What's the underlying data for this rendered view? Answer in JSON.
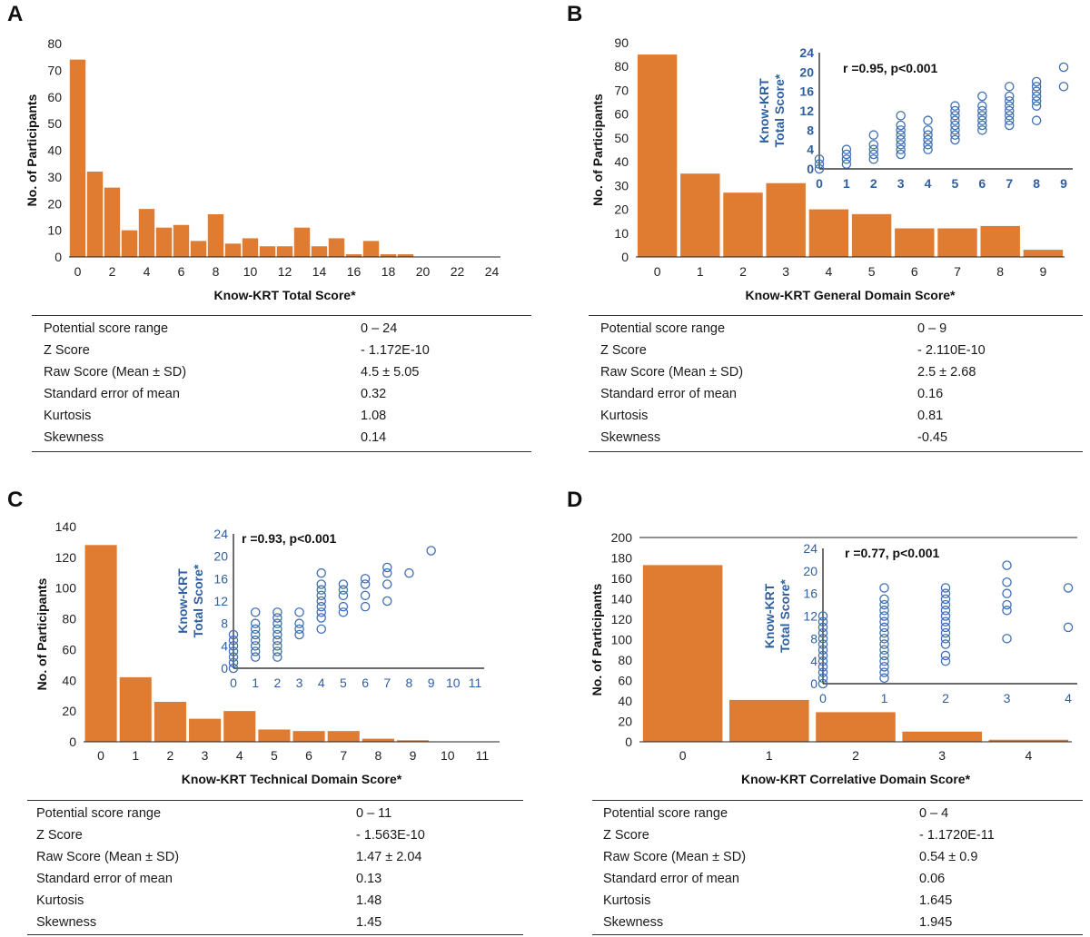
{
  "panels": {
    "A": {
      "letter": "A",
      "chart_data": {
        "type": "bar",
        "x_start": 0,
        "bin_width": 1,
        "values": [
          74,
          32,
          26,
          10,
          18,
          11,
          12,
          6,
          16,
          5,
          7,
          4,
          4,
          11,
          4,
          7,
          1,
          6,
          1,
          1,
          0,
          0,
          0,
          0,
          0
        ],
        "xlim": [
          -0.5,
          24.5
        ],
        "ylim": [
          0,
          80
        ],
        "xticks": [
          "0",
          "2",
          "4",
          "6",
          "8",
          "10",
          "12",
          "14",
          "16",
          "18",
          "20",
          "22",
          "24"
        ],
        "xtick_values": [
          0,
          2,
          4,
          6,
          8,
          10,
          12,
          14,
          16,
          18,
          20,
          22,
          24
        ],
        "yticks": [
          "0",
          "10",
          "20",
          "30",
          "40",
          "50",
          "60",
          "70",
          "80"
        ],
        "ytick_values": [
          0,
          10,
          20,
          30,
          40,
          50,
          60,
          70,
          80
        ],
        "xlabel": "Know-KRT Total Score*",
        "ylabel": "No. of Participants",
        "color": "#E07B32",
        "inset": null
      },
      "stats": [
        {
          "label": "Potential score range",
          "value": "0 – 24"
        },
        {
          "label": "Z Score",
          "value": "- 1.172E-10"
        },
        {
          "label": "Raw Score (Mean ± SD)",
          "value": "4.5 ± 5.05"
        },
        {
          "label": "Standard error of mean",
          "value": "0.32"
        },
        {
          "label": "Kurtosis",
          "value": "1.08"
        },
        {
          "label": "Skewness",
          "value": "0.14"
        }
      ]
    },
    "B": {
      "letter": "B",
      "chart_data": {
        "type": "bar",
        "categories": [
          "0",
          "1",
          "2",
          "3",
          "4",
          "5",
          "6",
          "7",
          "8",
          "9"
        ],
        "values": [
          85,
          35,
          27,
          31,
          20,
          18,
          12,
          12,
          13,
          3
        ],
        "ylim": [
          0,
          90
        ],
        "yticks": [
          "0",
          "10",
          "20",
          "30",
          "40",
          "50",
          "60",
          "70",
          "80",
          "90"
        ],
        "ytick_values": [
          0,
          10,
          20,
          30,
          40,
          50,
          60,
          70,
          80,
          90
        ],
        "xlabel": "Know-KRT General Domain Score*",
        "ylabel": "No. of Participants",
        "color": "#E07B32",
        "inset": {
          "type": "scatter",
          "annotation": "r =0.95, p<0.001",
          "ylabel_line1": "Know-KRT",
          "ylabel_line2": "Total Score*",
          "xlim": [
            0,
            9
          ],
          "ylim": [
            0,
            24
          ],
          "xticks": [
            "0",
            "1",
            "2",
            "3",
            "4",
            "5",
            "6",
            "7",
            "8",
            "9"
          ],
          "xtick_values": [
            0,
            1,
            2,
            3,
            4,
            5,
            6,
            7,
            8,
            9
          ],
          "yticks": [
            "0",
            "4",
            "8",
            "12",
            "16",
            "20",
            "24"
          ],
          "ytick_values": [
            0,
            4,
            8,
            12,
            16,
            20,
            24
          ],
          "bold_ticks": true,
          "points": [
            [
              0,
              0
            ],
            [
              0,
              1
            ],
            [
              0,
              2
            ],
            [
              1,
              1
            ],
            [
              1,
              2
            ],
            [
              1,
              3
            ],
            [
              1,
              4
            ],
            [
              2,
              2
            ],
            [
              2,
              3
            ],
            [
              2,
              4
            ],
            [
              2,
              5
            ],
            [
              2,
              7
            ],
            [
              3,
              3
            ],
            [
              3,
              4
            ],
            [
              3,
              5
            ],
            [
              3,
              6
            ],
            [
              3,
              7
            ],
            [
              3,
              8
            ],
            [
              3,
              9
            ],
            [
              3,
              11
            ],
            [
              4,
              4
            ],
            [
              4,
              5
            ],
            [
              4,
              6
            ],
            [
              4,
              7
            ],
            [
              4,
              8
            ],
            [
              4,
              10
            ],
            [
              5,
              6
            ],
            [
              5,
              7
            ],
            [
              5,
              8
            ],
            [
              5,
              9
            ],
            [
              5,
              10
            ],
            [
              5,
              11
            ],
            [
              5,
              12
            ],
            [
              5,
              13
            ],
            [
              6,
              8
            ],
            [
              6,
              9
            ],
            [
              6,
              10
            ],
            [
              6,
              11
            ],
            [
              6,
              12
            ],
            [
              6,
              13
            ],
            [
              6,
              15
            ],
            [
              7,
              9
            ],
            [
              7,
              10
            ],
            [
              7,
              11
            ],
            [
              7,
              12
            ],
            [
              7,
              13
            ],
            [
              7,
              14
            ],
            [
              7,
              15
            ],
            [
              7,
              17
            ],
            [
              8,
              10
            ],
            [
              8,
              13
            ],
            [
              8,
              14
            ],
            [
              8,
              15
            ],
            [
              8,
              16
            ],
            [
              8,
              17
            ],
            [
              8,
              18
            ],
            [
              9,
              17
            ],
            [
              9,
              21
            ]
          ]
        }
      },
      "stats": [
        {
          "label": "Potential score range",
          "value": "0 – 9"
        },
        {
          "label": "Z Score",
          "value": "- 2.110E-10"
        },
        {
          "label": "Raw Score (Mean ± SD)",
          "value": "2.5 ± 2.68"
        },
        {
          "label": "Standard error of mean",
          "value": "0.16"
        },
        {
          "label": "Kurtosis",
          "value": "0.81"
        },
        {
          "label": "Skewness",
          "value": "-0.45"
        }
      ]
    },
    "C": {
      "letter": "C",
      "chart_data": {
        "type": "bar",
        "categories": [
          "0",
          "1",
          "2",
          "3",
          "4",
          "5",
          "6",
          "7",
          "8",
          "9",
          "10",
          "11"
        ],
        "values": [
          128,
          42,
          26,
          15,
          20,
          8,
          7,
          7,
          2,
          1,
          0,
          0
        ],
        "ylim": [
          0,
          140
        ],
        "yticks": [
          "0",
          "20",
          "40",
          "60",
          "80",
          "100",
          "120",
          "140"
        ],
        "ytick_values": [
          0,
          20,
          40,
          60,
          80,
          100,
          120,
          140
        ],
        "xlabel": "Know-KRT Technical Domain Score*",
        "ylabel": "No. of Participants",
        "color": "#E07B32",
        "inset": {
          "type": "scatter",
          "annotation": "r =0.93, p<0.001",
          "ylabel_line1": "Know-KRT",
          "ylabel_line2": "Total Score*",
          "xlim": [
            0,
            11
          ],
          "ylim": [
            0,
            24
          ],
          "xticks": [
            "0",
            "1",
            "2",
            "3",
            "4",
            "5",
            "6",
            "7",
            "8",
            "9",
            "10",
            "11"
          ],
          "xtick_values": [
            0,
            1,
            2,
            3,
            4,
            5,
            6,
            7,
            8,
            9,
            10,
            11
          ],
          "yticks": [
            "0",
            "4",
            "8",
            "12",
            "16",
            "20",
            "24"
          ],
          "ytick_values": [
            0,
            4,
            8,
            12,
            16,
            20,
            24
          ],
          "bold_ticks": false,
          "points": [
            [
              0,
              0
            ],
            [
              0,
              1
            ],
            [
              0,
              2
            ],
            [
              0,
              3
            ],
            [
              0,
              4
            ],
            [
              0,
              5
            ],
            [
              0,
              6
            ],
            [
              1,
              2
            ],
            [
              1,
              3
            ],
            [
              1,
              4
            ],
            [
              1,
              5
            ],
            [
              1,
              6
            ],
            [
              1,
              7
            ],
            [
              1,
              8
            ],
            [
              1,
              10
            ],
            [
              2,
              2
            ],
            [
              2,
              3
            ],
            [
              2,
              4
            ],
            [
              2,
              5
            ],
            [
              2,
              6
            ],
            [
              2,
              7
            ],
            [
              2,
              8
            ],
            [
              2,
              9
            ],
            [
              2,
              10
            ],
            [
              3,
              6
            ],
            [
              3,
              7
            ],
            [
              3,
              8
            ],
            [
              3,
              10
            ],
            [
              4,
              7
            ],
            [
              4,
              9
            ],
            [
              4,
              10
            ],
            [
              4,
              11
            ],
            [
              4,
              12
            ],
            [
              4,
              13
            ],
            [
              4,
              14
            ],
            [
              4,
              15
            ],
            [
              4,
              17
            ],
            [
              5,
              10
            ],
            [
              5,
              11
            ],
            [
              5,
              13
            ],
            [
              5,
              14
            ],
            [
              5,
              15
            ],
            [
              6,
              11
            ],
            [
              6,
              13
            ],
            [
              6,
              15
            ],
            [
              6,
              16
            ],
            [
              7,
              12
            ],
            [
              7,
              15
            ],
            [
              7,
              17
            ],
            [
              7,
              18
            ],
            [
              8,
              17
            ],
            [
              9,
              21
            ]
          ]
        }
      },
      "stats": [
        {
          "label": "Potential score range",
          "value": "0 – 11"
        },
        {
          "label": "Z Score",
          "value": "- 1.563E-10"
        },
        {
          "label": "Raw Score (Mean ± SD)",
          "value": "1.47 ± 2.04"
        },
        {
          "label": "Standard error of mean",
          "value": "0.13"
        },
        {
          "label": "Kurtosis",
          "value": "1.48"
        },
        {
          "label": "Skewness",
          "value": "1.45"
        }
      ]
    },
    "D": {
      "letter": "D",
      "chart_data": {
        "type": "bar",
        "categories": [
          "0",
          "1",
          "2",
          "3",
          "4"
        ],
        "values": [
          173,
          41,
          29,
          10,
          2
        ],
        "ylim": [
          0,
          200
        ],
        "yticks": [
          "0",
          "20",
          "40",
          "60",
          "80",
          "100",
          "120",
          "140",
          "160",
          "180",
          "200"
        ],
        "ytick_values": [
          0,
          20,
          40,
          60,
          80,
          100,
          120,
          140,
          160,
          180,
          200
        ],
        "xlabel": "Know-KRT Correlative Domain Score*",
        "ylabel": "No. of Participants",
        "color": "#E07B32",
        "inset": {
          "type": "scatter",
          "annotation": "r =0.77, p<0.001",
          "ylabel_line1": "Know-KRT",
          "ylabel_line2": "Total Score*",
          "xlim": [
            0,
            4
          ],
          "ylim": [
            0,
            24
          ],
          "xticks": [
            "0",
            "1",
            "2",
            "3",
            "4"
          ],
          "xtick_values": [
            0,
            1,
            2,
            3,
            4
          ],
          "yticks": [
            "0",
            "4",
            "8",
            "12",
            "16",
            "20",
            "24"
          ],
          "ytick_values": [
            0,
            4,
            8,
            12,
            16,
            20,
            24
          ],
          "bold_ticks": false,
          "points": [
            [
              0,
              0
            ],
            [
              0,
              1
            ],
            [
              0,
              2
            ],
            [
              0,
              3
            ],
            [
              0,
              4
            ],
            [
              0,
              5
            ],
            [
              0,
              6
            ],
            [
              0,
              7
            ],
            [
              0,
              8
            ],
            [
              0,
              9
            ],
            [
              0,
              10
            ],
            [
              0,
              11
            ],
            [
              0,
              12
            ],
            [
              1,
              1
            ],
            [
              1,
              2
            ],
            [
              1,
              3
            ],
            [
              1,
              4
            ],
            [
              1,
              5
            ],
            [
              1,
              6
            ],
            [
              1,
              7
            ],
            [
              1,
              8
            ],
            [
              1,
              9
            ],
            [
              1,
              10
            ],
            [
              1,
              11
            ],
            [
              1,
              12
            ],
            [
              1,
              13
            ],
            [
              1,
              14
            ],
            [
              1,
              15
            ],
            [
              1,
              17
            ],
            [
              2,
              4
            ],
            [
              2,
              5
            ],
            [
              2,
              7
            ],
            [
              2,
              8
            ],
            [
              2,
              9
            ],
            [
              2,
              10
            ],
            [
              2,
              11
            ],
            [
              2,
              12
            ],
            [
              2,
              13
            ],
            [
              2,
              14
            ],
            [
              2,
              15
            ],
            [
              2,
              16
            ],
            [
              2,
              17
            ],
            [
              3,
              8
            ],
            [
              3,
              13
            ],
            [
              3,
              14
            ],
            [
              3,
              16
            ],
            [
              3,
              18
            ],
            [
              3,
              21
            ],
            [
              4,
              10
            ],
            [
              4,
              17
            ]
          ]
        }
      },
      "stats": [
        {
          "label": "Potential score range",
          "value": "0 – 4"
        },
        {
          "label": "Z Score",
          "value": "- 1.1720E-11"
        },
        {
          "label": "Raw Score (Mean ± SD)",
          "value": "0.54 ± 0.9"
        },
        {
          "label": "Standard error of mean",
          "value": "0.06"
        },
        {
          "label": "Kurtosis",
          "value": "1.645"
        },
        {
          "label": "Skewness",
          "value": "1.945"
        }
      ]
    }
  }
}
